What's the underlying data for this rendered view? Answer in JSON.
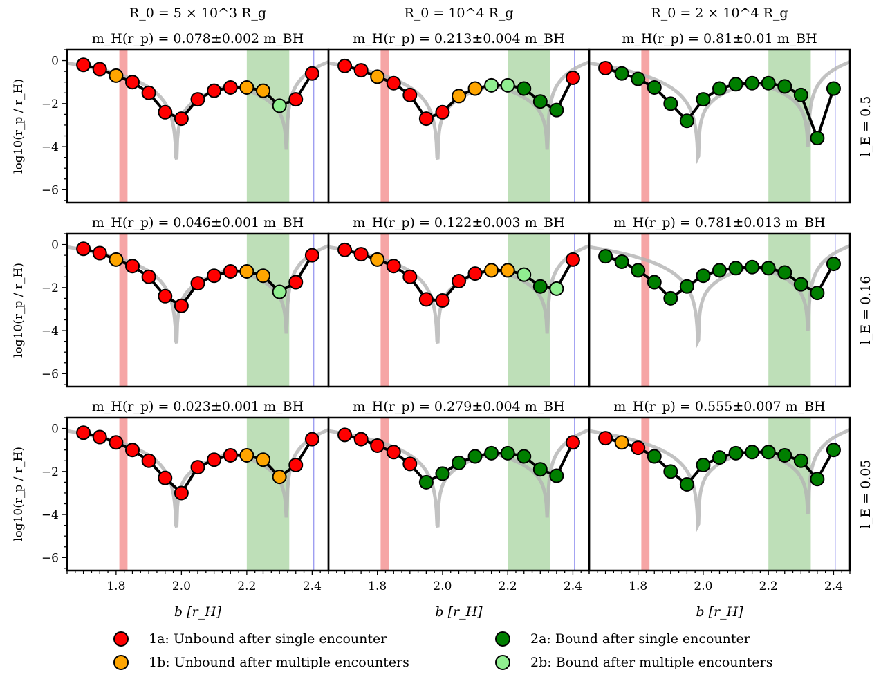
{
  "colors": {
    "cat_1a": "#ff0000",
    "cat_1b": "#ffa500",
    "cat_2a": "#007f00",
    "cat_2b": "#90ee90",
    "curve": "#b3b3b3",
    "band_red": "#f6a5a5",
    "band_green": "#a8d4a0",
    "vline_blue": "#8f8fef"
  },
  "legend": [
    {
      "cat": "1a",
      "label": "1a: Unbound after single encounter"
    },
    {
      "cat": "1b",
      "label": "1b: Unbound after multiple encounters"
    },
    {
      "cat": "2a",
      "label": "2a: Bound after single encounter"
    },
    {
      "cat": "2b",
      "label": "2b: Bound after multiple encounters"
    }
  ],
  "chart_data": {
    "type": "scatter",
    "xlabel": "b [r_H]",
    "ylabel": "log10(r_p / r_H)",
    "xlim": [
      1.65,
      2.45
    ],
    "ylim": [
      -6.6,
      0.5
    ],
    "x_ticks": [
      "1.8",
      "2.0",
      "2.2",
      "2.4"
    ],
    "y_ticks": [
      "0",
      "−2",
      "−4",
      "−6"
    ],
    "x_ticks_values": [
      1.8,
      2.0,
      2.2,
      2.4
    ],
    "y_ticks_values": [
      0,
      -2,
      -4,
      -6
    ],
    "column_headers": [
      "R_0 = 5 × 10^3 R_g",
      "R_0 = 10^4 R_g",
      "R_0 = 2 × 10^4 R_g"
    ],
    "row_labels": [
      "l_E = 0.5",
      "l_E = 0.16",
      "l_E = 0.05"
    ],
    "shaded_regions": {
      "red": [
        1.81,
        1.835
      ],
      "green": [
        2.2,
        2.33
      ]
    },
    "blue_line_x": 2.405,
    "b_values": [
      1.7,
      1.75,
      1.8,
      1.85,
      1.9,
      1.95,
      2.0,
      2.05,
      2.1,
      2.15,
      2.2,
      2.25,
      2.3,
      2.35,
      2.4
    ],
    "panels": [
      {
        "row": 0,
        "col": 0,
        "mass_label": "m_H(r_p) = 0.078±0.002 m_BH",
        "y": [
          -0.2,
          -0.4,
          -0.7,
          -1.0,
          -1.5,
          -2.4,
          -2.7,
          -1.8,
          -1.4,
          -1.25,
          -1.25,
          -1.4,
          -2.1,
          -1.8,
          -0.6
        ],
        "cat": [
          "1a",
          "1a",
          "1b",
          "1a",
          "1a",
          "1a",
          "1a",
          "1a",
          "1a",
          "1a",
          "1b",
          "1b",
          "2b",
          "1a",
          "1a"
        ]
      },
      {
        "row": 0,
        "col": 1,
        "mass_label": "m_H(r_p) = 0.213±0.004 m_BH",
        "y": [
          -0.25,
          -0.45,
          -0.75,
          -1.05,
          -1.6,
          -2.7,
          -2.4,
          -1.65,
          -1.3,
          -1.15,
          -1.15,
          -1.3,
          -1.9,
          -2.3,
          -0.8
        ],
        "cat": [
          "1a",
          "1a",
          "1b",
          "1a",
          "1a",
          "1a",
          "1a",
          "1b",
          "1b",
          "2b",
          "2b",
          "2a",
          "2a",
          "2a",
          "1a"
        ]
      },
      {
        "row": 0,
        "col": 2,
        "mass_label": "m_H(r_p) = 0.81±0.01 m_BH",
        "y": [
          -0.35,
          -0.6,
          -0.85,
          -1.25,
          -2.0,
          -2.8,
          -1.8,
          -1.3,
          -1.1,
          -1.05,
          -1.05,
          -1.2,
          -1.6,
          -3.6,
          -1.3
        ],
        "cat": [
          "1a",
          "2a",
          "2a",
          "2a",
          "2a",
          "2a",
          "2a",
          "2a",
          "2a",
          "2a",
          "2a",
          "2a",
          "2a",
          "2a",
          "2a"
        ]
      },
      {
        "row": 1,
        "col": 0,
        "mass_label": "m_H(r_p) = 0.046±0.001 m_BH",
        "y": [
          -0.2,
          -0.4,
          -0.7,
          -1.0,
          -1.5,
          -2.4,
          -2.85,
          -1.8,
          -1.45,
          -1.25,
          -1.25,
          -1.45,
          -2.2,
          -1.75,
          -0.5
        ],
        "cat": [
          "1a",
          "1a",
          "1b",
          "1a",
          "1a",
          "1a",
          "1a",
          "1a",
          "1a",
          "1a",
          "1b",
          "1b",
          "2b",
          "1a",
          "1a"
        ]
      },
      {
        "row": 1,
        "col": 1,
        "mass_label": "m_H(r_p) = 0.122±0.003 m_BH",
        "y": [
          -0.25,
          -0.45,
          -0.7,
          -1.0,
          -1.5,
          -2.55,
          -2.6,
          -1.7,
          -1.35,
          -1.2,
          -1.2,
          -1.4,
          -1.95,
          -2.05,
          -0.7
        ],
        "cat": [
          "1a",
          "1a",
          "1b",
          "1a",
          "1a",
          "1a",
          "1a",
          "1a",
          "1a",
          "1b",
          "1b",
          "2b",
          "2a",
          "2b",
          "1a"
        ]
      },
      {
        "row": 1,
        "col": 2,
        "mass_label": "m_H(r_p) = 0.781±0.013 m_BH",
        "y": [
          -0.55,
          -0.8,
          -1.2,
          -1.75,
          -2.5,
          -1.95,
          -1.45,
          -1.2,
          -1.1,
          -1.05,
          -1.1,
          -1.3,
          -1.85,
          -2.25,
          -0.9
        ],
        "cat": [
          "2a",
          "2a",
          "2a",
          "2a",
          "2a",
          "2a",
          "2a",
          "2a",
          "2a",
          "2a",
          "2a",
          "2a",
          "2a",
          "2a",
          "2a"
        ]
      },
      {
        "row": 2,
        "col": 0,
        "mass_label": "m_H(r_p) = 0.023±0.001 m_BH",
        "y": [
          -0.2,
          -0.4,
          -0.65,
          -1.0,
          -1.5,
          -2.3,
          -3.0,
          -1.8,
          -1.45,
          -1.25,
          -1.25,
          -1.45,
          -2.25,
          -1.7,
          -0.5
        ],
        "cat": [
          "1a",
          "1a",
          "1a",
          "1a",
          "1a",
          "1a",
          "1a",
          "1a",
          "1a",
          "1a",
          "1b",
          "1b",
          "1b",
          "1a",
          "1a"
        ]
      },
      {
        "row": 2,
        "col": 1,
        "mass_label": "m_H(r_p) = 0.279±0.004 m_BH",
        "y": [
          -0.3,
          -0.5,
          -0.8,
          -1.1,
          -1.65,
          -2.5,
          -2.1,
          -1.6,
          -1.3,
          -1.15,
          -1.15,
          -1.3,
          -1.9,
          -2.2,
          -0.65
        ],
        "cat": [
          "1a",
          "1a",
          "1a",
          "1a",
          "1a",
          "2a",
          "2a",
          "2a",
          "2a",
          "2a",
          "2a",
          "2a",
          "2a",
          "2a",
          "1a"
        ]
      },
      {
        "row": 2,
        "col": 2,
        "mass_label": "m_H(r_p) = 0.555±0.007 m_BH",
        "y": [
          -0.45,
          -0.65,
          -0.9,
          -1.3,
          -2.0,
          -2.6,
          -1.7,
          -1.35,
          -1.15,
          -1.1,
          -1.1,
          -1.25,
          -1.5,
          -2.35,
          -1.0
        ],
        "cat": [
          "1a",
          "1b",
          "1a",
          "2a",
          "2a",
          "2a",
          "2a",
          "2a",
          "2a",
          "2a",
          "2a",
          "2a",
          "2a",
          "2a",
          "2a"
        ]
      }
    ]
  }
}
